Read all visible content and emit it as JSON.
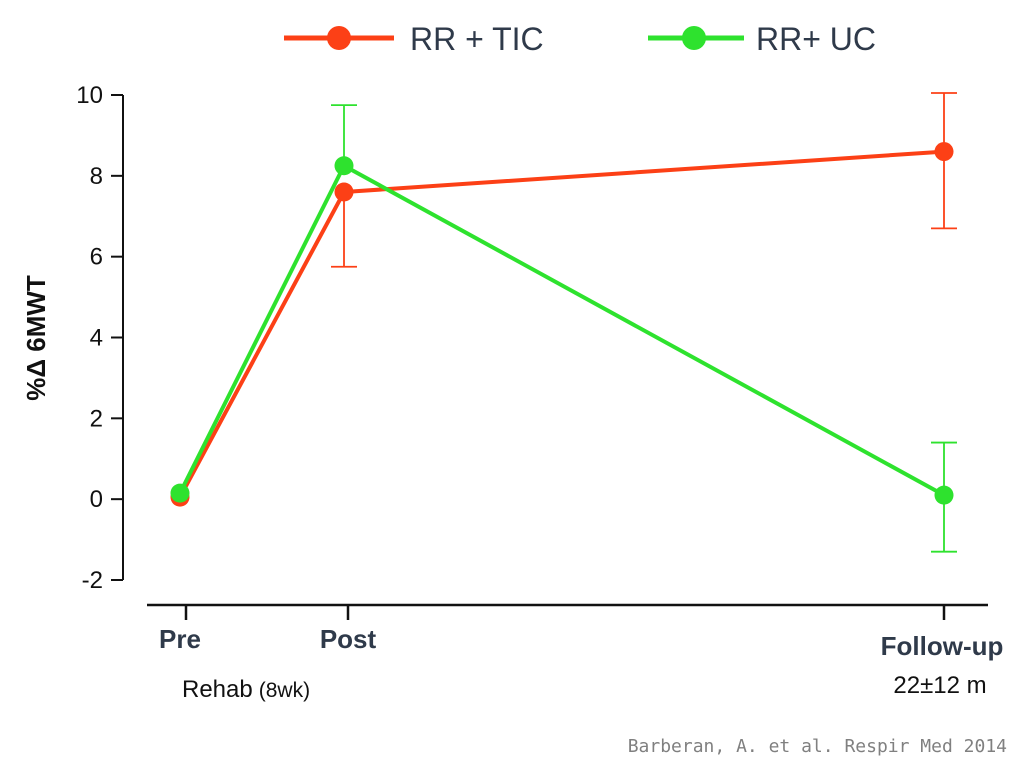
{
  "chart_data": {
    "type": "line",
    "ylabel": "%Δ 6MWT",
    "ylim": [
      -2,
      10
    ],
    "yticks": [
      "10",
      "8",
      "6",
      "4",
      "2",
      "0",
      "-2"
    ],
    "categories": [
      "Pre",
      "Post",
      "Follow-up"
    ],
    "x_sublabels": {
      "rehab": "Rehab",
      "rehab_duration": "(8wk)",
      "followup_duration": "22±12 m"
    },
    "legend_position": "top",
    "series": [
      {
        "name": "RR + TIC",
        "color": "#fc4016",
        "values": [
          0.05,
          7.6,
          8.6
        ],
        "error_low": [
          null,
          5.75,
          6.7
        ],
        "error_high": [
          null,
          null,
          10.05
        ]
      },
      {
        "name": "RR+ UC",
        "color": "#2ee22e",
        "values": [
          0.15,
          8.25,
          0.1
        ],
        "error_low": [
          null,
          null,
          -1.3
        ],
        "error_high": [
          null,
          9.75,
          1.4
        ]
      }
    ]
  },
  "source": "Barberan, A. et al. Respir Med 2014"
}
